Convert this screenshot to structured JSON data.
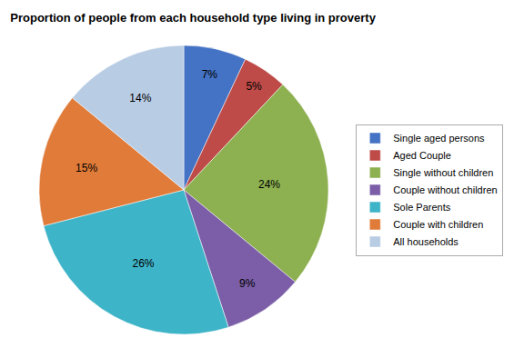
{
  "chart_data": {
    "type": "pie",
    "title": "Proportion of people from each household type living in proverty",
    "categories": [
      "Single aged persons",
      "Aged Couple",
      "Single without children",
      "Couple without children",
      "Sole Parents",
      "Couple with children",
      "All households"
    ],
    "values": [
      7,
      5,
      24,
      9,
      26,
      15,
      14
    ],
    "value_labels": [
      "7%",
      "5%",
      "24%",
      "9%",
      "26%",
      "15%",
      "14%"
    ],
    "colors": [
      "#4472C4",
      "#BE4B48",
      "#8DB050",
      "#7B5EA7",
      "#3EB4C8",
      "#E07B39",
      "#B8CCE4"
    ],
    "data_labels": true,
    "legend": "right"
  }
}
